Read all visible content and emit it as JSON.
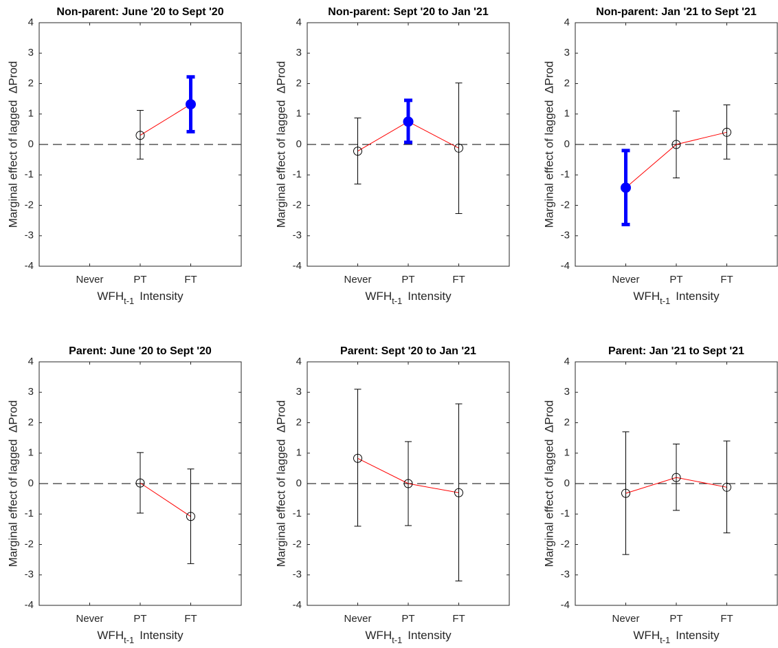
{
  "chart_data": [
    {
      "type": "errorbar",
      "title": "Non-parent: June '20 to Sept '20",
      "ylabel": "Marginal effect of lagged  ΔProd",
      "xlabel": {
        "main": "WFH",
        "sub": "t-1",
        "rest": "Intensity"
      },
      "categories": [
        "Never",
        "PT",
        "FT"
      ],
      "values": [
        null,
        0.3,
        1.32
      ],
      "lower": [
        null,
        -0.48,
        0.42
      ],
      "upper": [
        null,
        1.12,
        2.22
      ],
      "significant": [
        false,
        false,
        true
      ],
      "xlim": [
        0,
        4
      ],
      "ylim": [
        -4,
        4
      ],
      "yticks": [
        -4,
        -3,
        -2,
        -1,
        0,
        1,
        2,
        3,
        4
      ],
      "refline": 0,
      "line_color": "#ff0000",
      "marker_color": "#000000",
      "sig_color": "#0000ff"
    },
    {
      "type": "errorbar",
      "title": "Non-parent: Sept '20 to Jan '21",
      "ylabel": "Marginal effect of lagged  ΔProd",
      "xlabel": {
        "main": "WFH",
        "sub": "t-1",
        "rest": "Intensity"
      },
      "categories": [
        "Never",
        "PT",
        "FT"
      ],
      "values": [
        -0.22,
        0.75,
        -0.12
      ],
      "lower": [
        -1.3,
        0.07,
        -2.27
      ],
      "upper": [
        0.87,
        1.45,
        2.02
      ],
      "significant": [
        false,
        true,
        false
      ],
      "xlim": [
        0,
        4
      ],
      "ylim": [
        -4,
        4
      ],
      "yticks": [
        -4,
        -3,
        -2,
        -1,
        0,
        1,
        2,
        3,
        4
      ],
      "refline": 0,
      "line_color": "#ff0000",
      "marker_color": "#000000",
      "sig_color": "#0000ff"
    },
    {
      "type": "errorbar",
      "title": "Non-parent: Jan '21 to Sept '21",
      "ylabel": "Marginal effect of lagged  ΔProd",
      "xlabel": {
        "main": "WFH",
        "sub": "t-1",
        "rest": "Intensity"
      },
      "categories": [
        "Never",
        "PT",
        "FT"
      ],
      "values": [
        -1.42,
        0,
        0.4
      ],
      "lower": [
        -2.63,
        -1.1,
        -0.48
      ],
      "upper": [
        -0.2,
        1.1,
        1.3
      ],
      "significant": [
        true,
        false,
        false
      ],
      "xlim": [
        0,
        4
      ],
      "ylim": [
        -4,
        4
      ],
      "yticks": [
        -4,
        -3,
        -2,
        -1,
        0,
        1,
        2,
        3,
        4
      ],
      "refline": 0,
      "line_color": "#ff0000",
      "marker_color": "#000000",
      "sig_color": "#0000ff"
    },
    {
      "type": "errorbar",
      "title": "Parent: June '20 to Sept '20",
      "ylabel": "Marginal effect of lagged  ΔProd",
      "xlabel": {
        "main": "WFH",
        "sub": "t-1",
        "rest": "Intensity"
      },
      "categories": [
        "Never",
        "PT",
        "FT"
      ],
      "values": [
        null,
        0.02,
        -1.08
      ],
      "lower": [
        null,
        -0.97,
        -2.63
      ],
      "upper": [
        null,
        1.02,
        0.48
      ],
      "significant": [
        false,
        false,
        false
      ],
      "xlim": [
        0,
        4
      ],
      "ylim": [
        -4,
        4
      ],
      "yticks": [
        -4,
        -3,
        -2,
        -1,
        0,
        1,
        2,
        3,
        4
      ],
      "refline": 0,
      "line_color": "#ff0000",
      "marker_color": "#000000",
      "sig_color": "#0000ff"
    },
    {
      "type": "errorbar",
      "title": "Parent: Sept '20 to Jan '21",
      "ylabel": "Marginal effect of lagged  ΔProd",
      "xlabel": {
        "main": "WFH",
        "sub": "t-1",
        "rest": "Intensity"
      },
      "categories": [
        "Never",
        "PT",
        "FT"
      ],
      "values": [
        0.83,
        0,
        -0.3
      ],
      "lower": [
        -1.4,
        -1.38,
        -3.2
      ],
      "upper": [
        3.1,
        1.38,
        2.62
      ],
      "significant": [
        false,
        false,
        false
      ],
      "xlim": [
        0,
        4
      ],
      "ylim": [
        -4,
        4
      ],
      "yticks": [
        -4,
        -3,
        -2,
        -1,
        0,
        1,
        2,
        3,
        4
      ],
      "refline": 0,
      "line_color": "#ff0000",
      "marker_color": "#000000",
      "sig_color": "#0000ff"
    },
    {
      "type": "errorbar",
      "title": "Parent: Jan '21 to Sept '21",
      "ylabel": "Marginal effect of lagged  ΔProd",
      "xlabel": {
        "main": "WFH",
        "sub": "t-1",
        "rest": "Intensity"
      },
      "categories": [
        "Never",
        "PT",
        "FT"
      ],
      "values": [
        -0.32,
        0.2,
        -0.12
      ],
      "lower": [
        -2.33,
        -0.88,
        -1.62
      ],
      "upper": [
        1.7,
        1.3,
        1.4
      ],
      "significant": [
        false,
        false,
        false
      ],
      "xlim": [
        0,
        4
      ],
      "ylim": [
        -4,
        4
      ],
      "yticks": [
        -4,
        -3,
        -2,
        -1,
        0,
        1,
        2,
        3,
        4
      ],
      "refline": 0,
      "line_color": "#ff0000",
      "marker_color": "#000000",
      "sig_color": "#0000ff"
    }
  ]
}
